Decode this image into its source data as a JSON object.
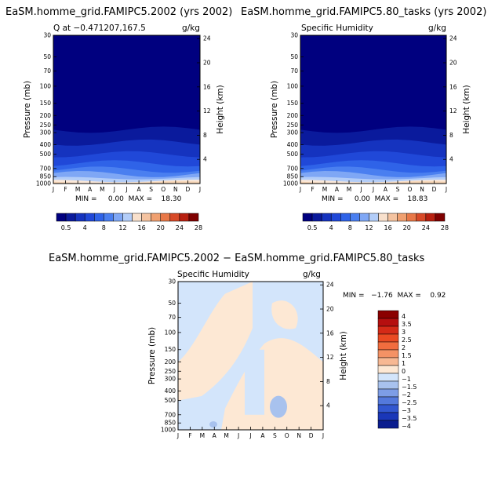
{
  "panels": {
    "p1": {
      "title": "EaSM.homme_grid.FAMIPC5.2002 (yrs 2002)",
      "left_label": "Q at −0.471207,167.5",
      "right_label": "g/kg",
      "ylabel_left": "Pressure (mb)",
      "ylabel_right": "Height (km)",
      "minmax": "MIN =     0.00  MAX =    18.30"
    },
    "p2": {
      "title": "EaSM.homme_grid.FAMIPC5.80_tasks (yrs 2002)",
      "left_label": "Specific Humidity",
      "right_label": "g/kg",
      "ylabel_left": "Pressure (mb)",
      "ylabel_right": "Height (km)",
      "minmax": "MIN =     0.00  MAX =    18.83"
    },
    "p3": {
      "title": "EaSM.homme_grid.FAMIPC5.2002 − EaSM.homme_grid.FAMIPC5.80_tasks",
      "left_label": "Specific Humidity",
      "right_label": "g/kg",
      "ylabel_left": "Pressure (mb)",
      "ylabel_right": "Height (km)",
      "minmax": "MIN =   −1.76  MAX =    0.92"
    }
  },
  "colors": {
    "sequential": [
      "#00007f",
      "#0a1a9c",
      "#1533bf",
      "#2048d8",
      "#2f63e8",
      "#4a7ff0",
      "#7fa7f5",
      "#b3cdf8",
      "#f8e0cc",
      "#f4c3a0",
      "#f0a070",
      "#e87848",
      "#d84a28",
      "#b82010",
      "#7f0000"
    ],
    "diff_negative": "#d3e5fb",
    "diff_positive": "#fde8d4",
    "diff_low_blob": "#a8c2ee",
    "surface_warm": "#f7d5b5",
    "surface_light": "#fbe8d8"
  },
  "chart_data": [
    {
      "type": "heatmap",
      "title": "EaSM.homme_grid.FAMIPC5.2002 (yrs 2002)",
      "xlabel": "",
      "ylabel": "Pressure (mb)",
      "ylabel_right": "Height (km)",
      "months": [
        "J",
        "F",
        "M",
        "A",
        "M",
        "J",
        "J",
        "A",
        "S",
        "O",
        "N",
        "D",
        "J"
      ],
      "pressure_ticks": [
        30,
        50,
        70,
        100,
        150,
        200,
        250,
        300,
        400,
        500,
        700,
        850,
        1000
      ],
      "height_ticks": [
        4,
        8,
        12,
        16,
        20,
        24
      ],
      "ylim": [
        1000,
        30
      ],
      "colorbar_labels": [
        "0.5",
        "4",
        "8",
        "12",
        "16",
        "20",
        "24",
        "28"
      ],
      "units": "g/kg",
      "min": 0.0,
      "max": 18.3
    },
    {
      "type": "heatmap",
      "title": "EaSM.homme_grid.FAMIPC5.80_tasks (yrs 2002)",
      "xlabel": "",
      "ylabel": "Pressure (mb)",
      "ylabel_right": "Height (km)",
      "months": [
        "J",
        "F",
        "M",
        "A",
        "M",
        "J",
        "J",
        "A",
        "S",
        "O",
        "N",
        "D",
        "J"
      ],
      "pressure_ticks": [
        30,
        50,
        70,
        100,
        150,
        200,
        250,
        300,
        400,
        500,
        700,
        850,
        1000
      ],
      "height_ticks": [
        4,
        8,
        12,
        16,
        20,
        24
      ],
      "ylim": [
        1000,
        30
      ],
      "colorbar_labels": [
        "0.5",
        "4",
        "8",
        "12",
        "16",
        "20",
        "24",
        "28"
      ],
      "units": "g/kg",
      "min": 0.0,
      "max": 18.83
    },
    {
      "type": "heatmap",
      "title": "EaSM.homme_grid.FAMIPC5.2002 − EaSM.homme_grid.FAMIPC5.80_tasks",
      "xlabel": "",
      "ylabel": "Pressure (mb)",
      "ylabel_right": "Height (km)",
      "months": [
        "J",
        "F",
        "M",
        "A",
        "M",
        "J",
        "J",
        "A",
        "S",
        "O",
        "N",
        "D",
        "J"
      ],
      "pressure_ticks": [
        30,
        50,
        70,
        100,
        150,
        200,
        250,
        300,
        400,
        500,
        700,
        850,
        1000
      ],
      "height_ticks": [
        4,
        8,
        12,
        16,
        20,
        24
      ],
      "ylim": [
        1000,
        30
      ],
      "colorbar_labels": [
        "4",
        "3.5",
        "3",
        "2.5",
        "2",
        "1.5",
        "1",
        "0",
        "−1",
        "−1.5",
        "−2",
        "−2.5",
        "−3",
        "−3.5",
        "−4"
      ],
      "colorbar_colors": [
        "#8b0000",
        "#b50f0f",
        "#d42a17",
        "#ea4a22",
        "#f26d3e",
        "#f49265",
        "#f7b893",
        "#fde8d4",
        "#d3e5fb",
        "#a8c2ee",
        "#7d9de6",
        "#5479dc",
        "#3257d0",
        "#1a37b8",
        "#0a1d8f"
      ],
      "units": "g/kg",
      "min": -1.76,
      "max": 0.92
    }
  ]
}
